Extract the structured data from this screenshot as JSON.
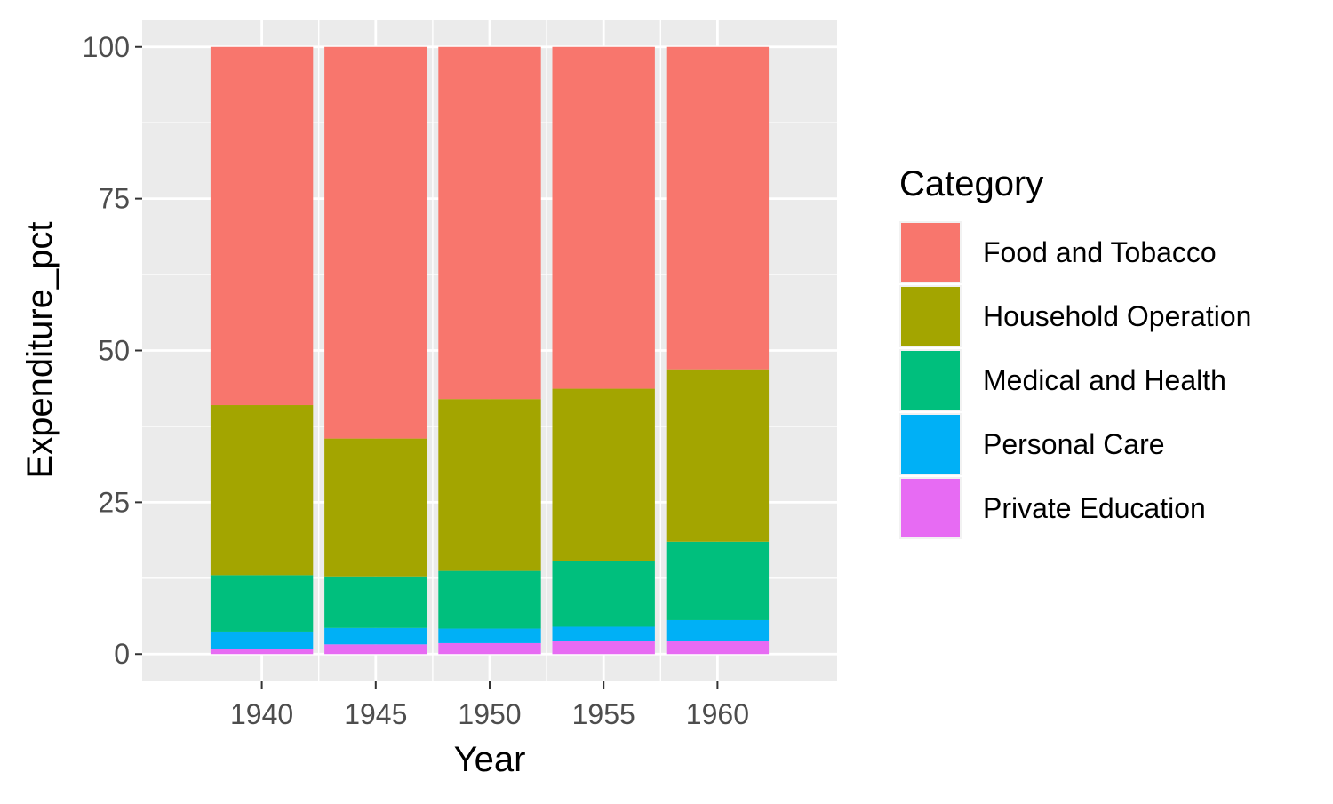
{
  "chart_data": {
    "type": "bar",
    "stacked": true,
    "categories": [
      "1940",
      "1945",
      "1950",
      "1955",
      "1960"
    ],
    "series": [
      {
        "name": "Private Education",
        "color": "#E76BF3",
        "values": [
          0.8,
          1.6,
          1.8,
          2.1,
          2.2
        ]
      },
      {
        "name": "Personal Care",
        "color": "#00B0F6",
        "values": [
          2.9,
          2.7,
          2.4,
          2.4,
          3.4
        ]
      },
      {
        "name": "Medical and Health",
        "color": "#00BF7D",
        "values": [
          9.3,
          8.5,
          9.5,
          10.9,
          12.9
        ]
      },
      {
        "name": "Household Operation",
        "color": "#A3A500",
        "values": [
          28.0,
          22.7,
          28.3,
          28.3,
          28.4
        ]
      },
      {
        "name": "Food and Tobacco",
        "color": "#F8766D",
        "values": [
          59.0,
          64.5,
          58.0,
          56.3,
          53.1
        ]
      }
    ],
    "xlabel": "Year",
    "ylabel": "Expenditure_pct",
    "ylim": [
      -4.5,
      104.5
    ],
    "yticks": [
      0,
      25,
      50,
      75,
      100
    ],
    "grid": true,
    "legend": {
      "title": "Category",
      "position": "right",
      "items": [
        "Food and Tobacco",
        "Household Operation",
        "Medical and Health",
        "Personal Care",
        "Private Education"
      ]
    },
    "panel_background": "#EBEBEB",
    "grid_color": "#FFFFFF"
  }
}
